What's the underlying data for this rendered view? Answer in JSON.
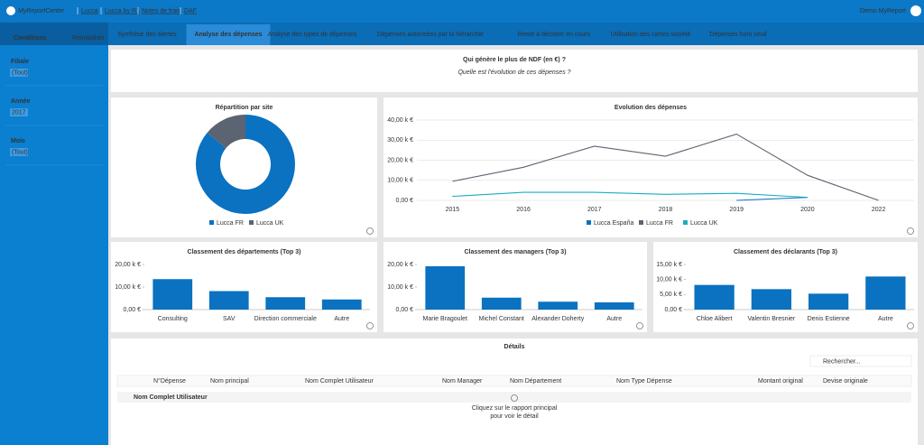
{
  "header": {
    "logo": "MyReportCenter",
    "links": [
      "Lucca",
      "Lucca by R1",
      "Notes de frais",
      "DAF"
    ],
    "user": "Démo MyReport"
  },
  "sidebar": {
    "title": "Conditions",
    "reset": "Réinitialiser",
    "filters": [
      {
        "label": "Filiale",
        "value": "(Tout)"
      },
      {
        "label": "Année",
        "value": "2017"
      },
      {
        "label": "Mois",
        "value": "(Tout)"
      }
    ]
  },
  "tabs": {
    "items": [
      "Synthèse des alertes",
      "Analyse des dépenses",
      "Analyse des types de dépenses",
      "Dépenses autorisées par la hiérarchie",
      "Reste à déclarer en cours",
      "Utilisation des cartes société",
      "Dépenses hors seuil"
    ],
    "active": 1
  },
  "headline": {
    "title": "Qui génère le plus de NDF (en €) ?",
    "subtitle": "Quelle est l'évolution de ces dépenses ?"
  },
  "chart_data": [
    {
      "type": "pie",
      "title": "Répartition par site",
      "categories": [
        "Lucca FR",
        "Lucca UK"
      ],
      "values": [
        86,
        14
      ],
      "colors": [
        "#0a72c0",
        "#5b6470"
      ]
    },
    {
      "type": "line",
      "title": "Evolution des dépenses",
      "categories": [
        "2015",
        "2016",
        "2017",
        "2018",
        "2019",
        "2020",
        "2022"
      ],
      "series": [
        {
          "name": "Lucca España",
          "color": "#0a72c0",
          "values": [
            null,
            null,
            null,
            null,
            0,
            1.5,
            null
          ]
        },
        {
          "name": "Lucca FR",
          "color": "#5b6470",
          "values": [
            9.5,
            16.5,
            27,
            22,
            33,
            12.5,
            0
          ]
        },
        {
          "name": "Lucca UK",
          "color": "#19adc0",
          "values": [
            2,
            4,
            4,
            3,
            3.5,
            1.5,
            null
          ]
        }
      ],
      "ylim": [
        0,
        40
      ],
      "yticks": [
        {
          "value": 0,
          "label": "0,00 €"
        },
        {
          "value": 10,
          "label": "10,00 k €"
        },
        {
          "value": 20,
          "label": "20,00 k €"
        },
        {
          "value": 30,
          "label": "30,00 k €"
        },
        {
          "value": 40,
          "label": "40,00 k €"
        }
      ],
      "grid": true
    },
    {
      "type": "bar",
      "title": "Classement des départements (Top 3)",
      "categories": [
        "Consulting",
        "SAV",
        "Direction commerciale",
        "Autre"
      ],
      "values": [
        13.5,
        8.2,
        5.5,
        4.5
      ],
      "color": "#0a72c0",
      "ylim": [
        0,
        20
      ],
      "yticks": [
        {
          "value": 0,
          "label": "0,00 €"
        },
        {
          "value": 10,
          "label": "10,00 k €"
        },
        {
          "value": 20,
          "label": "20,00 k €"
        }
      ]
    },
    {
      "type": "bar",
      "title": "Classement des managers (Top 3)",
      "categories": [
        "Marie Bragoulet",
        "Michel Constant",
        "Alexander Doherty",
        "Autre"
      ],
      "values": [
        19.2,
        5.3,
        3.5,
        3.2
      ],
      "color": "#0a72c0",
      "ylim": [
        0,
        20
      ],
      "yticks": [
        {
          "value": 0,
          "label": "0,00 €"
        },
        {
          "value": 10,
          "label": "10,00 k €"
        },
        {
          "value": 20,
          "label": "20,00 k €"
        }
      ]
    },
    {
      "type": "bar",
      "title": "Classement des déclarants (Top 3)",
      "categories": [
        "Chloe Alibert",
        "Valentin Bresnier",
        "Denis Estienne",
        "Autre"
      ],
      "values": [
        8.2,
        6.8,
        5.3,
        11
      ],
      "color": "#0a72c0",
      "ylim": [
        0,
        15
      ],
      "yticks": [
        {
          "value": 0,
          "label": "0,00 €"
        },
        {
          "value": 5,
          "label": "5,00 k €"
        },
        {
          "value": 10,
          "label": "10,00 k €"
        },
        {
          "value": 15,
          "label": "15,00 k €"
        }
      ]
    }
  ],
  "details": {
    "title": "Détails",
    "search": "Rechercher...",
    "columns": [
      "N°Dépense",
      "Nom principal",
      "Nom Complet Utilisateur",
      "Nom Manager",
      "Nom Département",
      "Nom Type Dépense",
      "Montant original",
      "Devise originale"
    ],
    "group": "Nom Complet Utilisateur",
    "message": [
      "Cliquez sur le rapport principal",
      "pour voir le détail"
    ]
  }
}
